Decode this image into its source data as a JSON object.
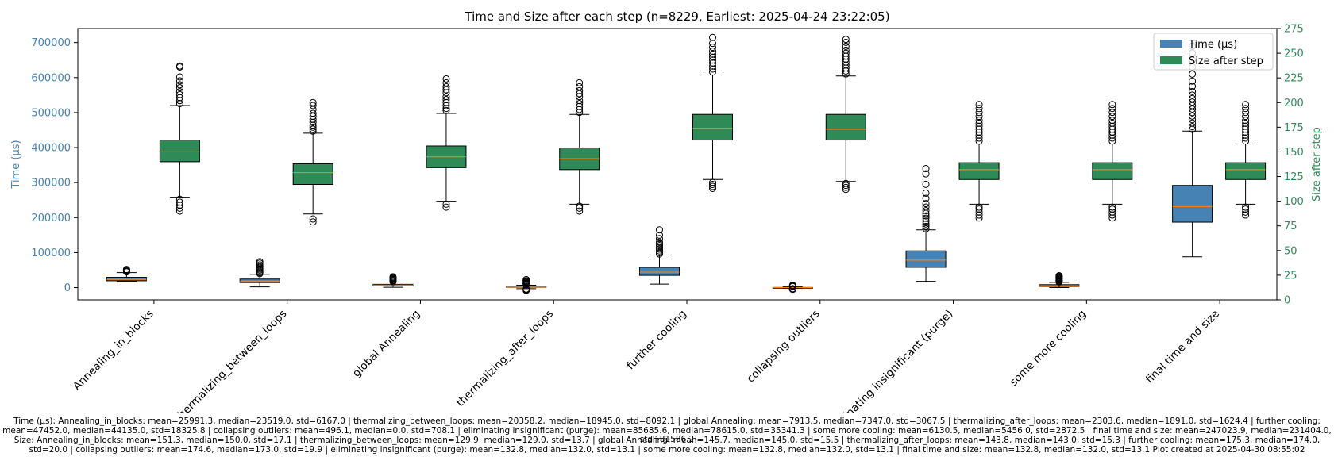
{
  "chart_data": {
    "type": "boxplot",
    "title": "Time and Size after each step (n=8229, Earliest: 2025-04-24 23:22:05)",
    "ylabel_left": "Time (μs)",
    "ylabel_right": "Size after step",
    "left_ylim": [
      -35000,
      740000
    ],
    "right_ylim": [
      0,
      275
    ],
    "left_ticks": [
      "0",
      "100000",
      "200000",
      "300000",
      "400000",
      "500000",
      "600000",
      "700000"
    ],
    "left_tick_values": [
      0,
      100000,
      200000,
      300000,
      400000,
      500000,
      600000,
      700000
    ],
    "right_ticks": [
      "0",
      "25",
      "50",
      "75",
      "100",
      "125",
      "150",
      "175",
      "200",
      "225",
      "250",
      "275"
    ],
    "right_tick_values": [
      0,
      25,
      50,
      75,
      100,
      125,
      150,
      175,
      200,
      225,
      250,
      275
    ],
    "grid": false,
    "legend_position": "top-right",
    "legend": [
      {
        "label": "Time (µs)",
        "color": "#4682b4"
      },
      {
        "label": "Size after step",
        "color": "#2e8b57"
      }
    ],
    "colors": {
      "time": "#4682b4",
      "size": "#2e8b57",
      "median": "#ff7f0e",
      "left_axis": "#4682b4",
      "right_axis": "#2e8b57"
    },
    "categories": [
      "Annealing_in_blocks",
      "thermalizing_between_loops",
      "global Annealing",
      "thermalizing_after_loops",
      "further cooling",
      "collapsing outliers",
      "eliminating insignificant (purge)",
      "some more cooling",
      "final time and size"
    ],
    "series": [
      {
        "name": "Time (µs)",
        "axis": "left",
        "boxes": [
          {
            "whislo": 17000,
            "q1": 19500,
            "med": 23519,
            "q3": 29500,
            "whishi": 43000,
            "fliers_low": [],
            "fliers_high": [
              45000,
              47000,
              49000,
              50000,
              51000,
              52000
            ]
          },
          {
            "whislo": 2000,
            "q1": 14500,
            "med": 18945,
            "q3": 24500,
            "whislo_note": "",
            "whishi": 38000,
            "fliers_low": [],
            "fliers_high": [
              40000,
              43000,
              46000,
              50000,
              53000,
              56000,
              60000,
              65000,
              70000,
              74000
            ]
          },
          {
            "whislo": 1000,
            "q1": 5000,
            "med": 7347,
            "q3": 9500,
            "whishi": 16000,
            "fliers_low": [],
            "fliers_high": [
              17000,
              19000,
              21000,
              23000,
              25000,
              27000,
              29000,
              31000
            ]
          },
          {
            "whislo": -3000,
            "q1": 900,
            "med": 1891,
            "q3": 3200,
            "whishi": 7000,
            "fliers_low": [
              -4000,
              -6000,
              -8000
            ],
            "fliers_high": [
              8000,
              10000,
              12000,
              14000,
              16000,
              18000,
              20000,
              23000
            ]
          },
          {
            "whislo": 10000,
            "q1": 35000,
            "med": 44135,
            "q3": 58000,
            "whishi": 93000,
            "fliers_low": [],
            "fliers_high": [
              96000,
              100000,
              105000,
              110000,
              115000,
              120000,
              125000,
              130000,
              140000,
              150000,
              165000
            ]
          },
          {
            "whislo": -2000,
            "q1": -500,
            "med": 0,
            "q3": 500,
            "whishi": 2000,
            "fliers_low": [
              -3000,
              -4000,
              -5000
            ],
            "fliers_high": [
              3000,
              4000,
              5000,
              6000,
              7000
            ]
          },
          {
            "whislo": 18000,
            "q1": 58000,
            "med": 78615,
            "q3": 105000,
            "whishi": 165000,
            "fliers_low": [],
            "fliers_high": [
              168000,
              175000,
              182000,
              190000,
              198000,
              205000,
              212000,
              220000,
              230000,
              240000,
              255000,
              270000,
              295000,
              325000,
              340000
            ]
          },
          {
            "whislo": 200,
            "q1": 3500,
            "med": 5456,
            "q3": 8500,
            "whishi": 15000,
            "fliers_low": [],
            "fliers_high": [
              16000,
              18000,
              20000,
              22000,
              24000,
              26000,
              28000,
              30000,
              32000,
              34000
            ]
          },
          {
            "whislo": 88000,
            "q1": 187000,
            "med": 231404,
            "q3": 292000,
            "whishi": 447000,
            "fliers_low": [],
            "fliers_high": [
              452000,
              460000,
              470000,
              480000,
              490000,
              500000,
              510000,
              520000,
              530000,
              540000,
              550000,
              560000,
              575000,
              590000,
              610000,
              630000,
              650000,
              670000,
              690000
            ]
          }
        ]
      },
      {
        "name": "Size after step",
        "axis": "right",
        "boxes": [
          {
            "whislo": 104,
            "q1": 140,
            "med": 150,
            "q3": 162,
            "whishi": 197,
            "fliers_low": [
              102,
              99,
              96,
              93,
              90
            ],
            "fliers_high": [
              199,
              202,
              205,
              208,
              211,
              215,
              218,
              222,
              226,
              236,
              237
            ]
          },
          {
            "whislo": 87,
            "q1": 117,
            "med": 129,
            "q3": 138,
            "whishi": 169,
            "fliers_low": [
              82,
              79
            ],
            "fliers_high": [
              171,
              173,
              175,
              177,
              180,
              183,
              186,
              189,
              193,
              197,
              200
            ]
          },
          {
            "whislo": 100,
            "q1": 134,
            "med": 145,
            "q3": 156,
            "whishi": 189,
            "fliers_low": [
              97,
              94
            ],
            "fliers_high": [
              192,
              194,
              197,
              200,
              203,
              206,
              210,
              213,
              216,
              220,
              224
            ]
          },
          {
            "whislo": 97,
            "q1": 132,
            "med": 143,
            "q3": 154,
            "whishi": 188,
            "fliers_low": [
              95,
              93,
              90
            ],
            "fliers_high": [
              190,
              193,
              196,
              199,
              202,
              206,
              209,
              212,
              216,
              220
            ]
          },
          {
            "whislo": 122,
            "q1": 162,
            "med": 174,
            "q3": 188,
            "whishi": 228,
            "fliers_low": [
              119,
              117,
              115,
              113
            ],
            "fliers_high": [
              231,
              234,
              237,
              240,
              243,
              246,
              249,
              252,
              256,
              260,
              266
            ]
          },
          {
            "whislo": 120,
            "q1": 162,
            "med": 173,
            "q3": 188,
            "whishi": 227,
            "fliers_low": [
              118,
              116,
              114,
              112
            ],
            "fliers_high": [
              229,
              232,
              235,
              238,
              241,
              244,
              247,
              250,
              253,
              257,
              261,
              264
            ]
          },
          {
            "whislo": 97,
            "q1": 122,
            "med": 132,
            "q3": 139,
            "whishi": 158,
            "fliers_low": [
              94,
              92,
              89,
              86,
              83
            ],
            "fliers_high": [
              161,
              164,
              167,
              170,
              173,
              176,
              179,
              182,
              186,
              190,
              194,
              198
            ]
          },
          {
            "whislo": 97,
            "q1": 122,
            "med": 132,
            "q3": 139,
            "whishi": 158,
            "fliers_low": [
              94,
              92,
              89,
              86,
              83
            ],
            "fliers_high": [
              161,
              164,
              167,
              170,
              173,
              176,
              179,
              182,
              186,
              190,
              194,
              198
            ]
          },
          {
            "whislo": 97,
            "q1": 122,
            "med": 132,
            "q3": 139,
            "whishi": 158,
            "fliers_low": [
              94,
              92,
              89,
              86
            ],
            "fliers_high": [
              161,
              164,
              167,
              170,
              173,
              176,
              179,
              182,
              186,
              190,
              194,
              198
            ]
          }
        ]
      }
    ]
  },
  "footer": {
    "time_line": "Time (µs): Annealing_in_blocks: mean=25991.3, median=23519.0, std=6167.0 | thermalizing_between_loops: mean=20358.2, median=18945.0, std=8092.1 | global Annealing: mean=7913.5, median=7347.0, std=3067.5 | thermalizing_after_loops: mean=2303.6, median=1891.0, std=1624.4 | further cooling: mean=47452.0, median=44135.0, std=18325.8 | collapsing outliers: mean=496.1, median=0.0, std=708.1 | eliminating insignificant (purge): mean=85685.6, median=78615.0, std=35341.3 | some more cooling: mean=6130.5, median=5456.0, std=2872.5 | final time and size: mean=247023.9, median=231404.0, std=81586.2",
    "size_line": "Size: Annealing_in_blocks: mean=151.3, median=150.0, std=17.1 | thermalizing_between_loops: mean=129.9, median=129.0, std=13.7 | global Annealing: mean=145.7, median=145.0, std=15.5 | thermalizing_after_loops: mean=143.8, median=143.0, std=15.3 | further cooling: mean=175.3, median=174.0, std=20.0 | collapsing outliers: mean=174.6, median=173.0, std=19.9 | eliminating insignificant (purge): mean=132.8, median=132.0, std=13.1 | some more cooling: mean=132.8, median=132.0, std=13.1 | final time and size: mean=132.8, median=132.0, std=13.1    Plot created at 2025-04-30 08:55:02"
  }
}
